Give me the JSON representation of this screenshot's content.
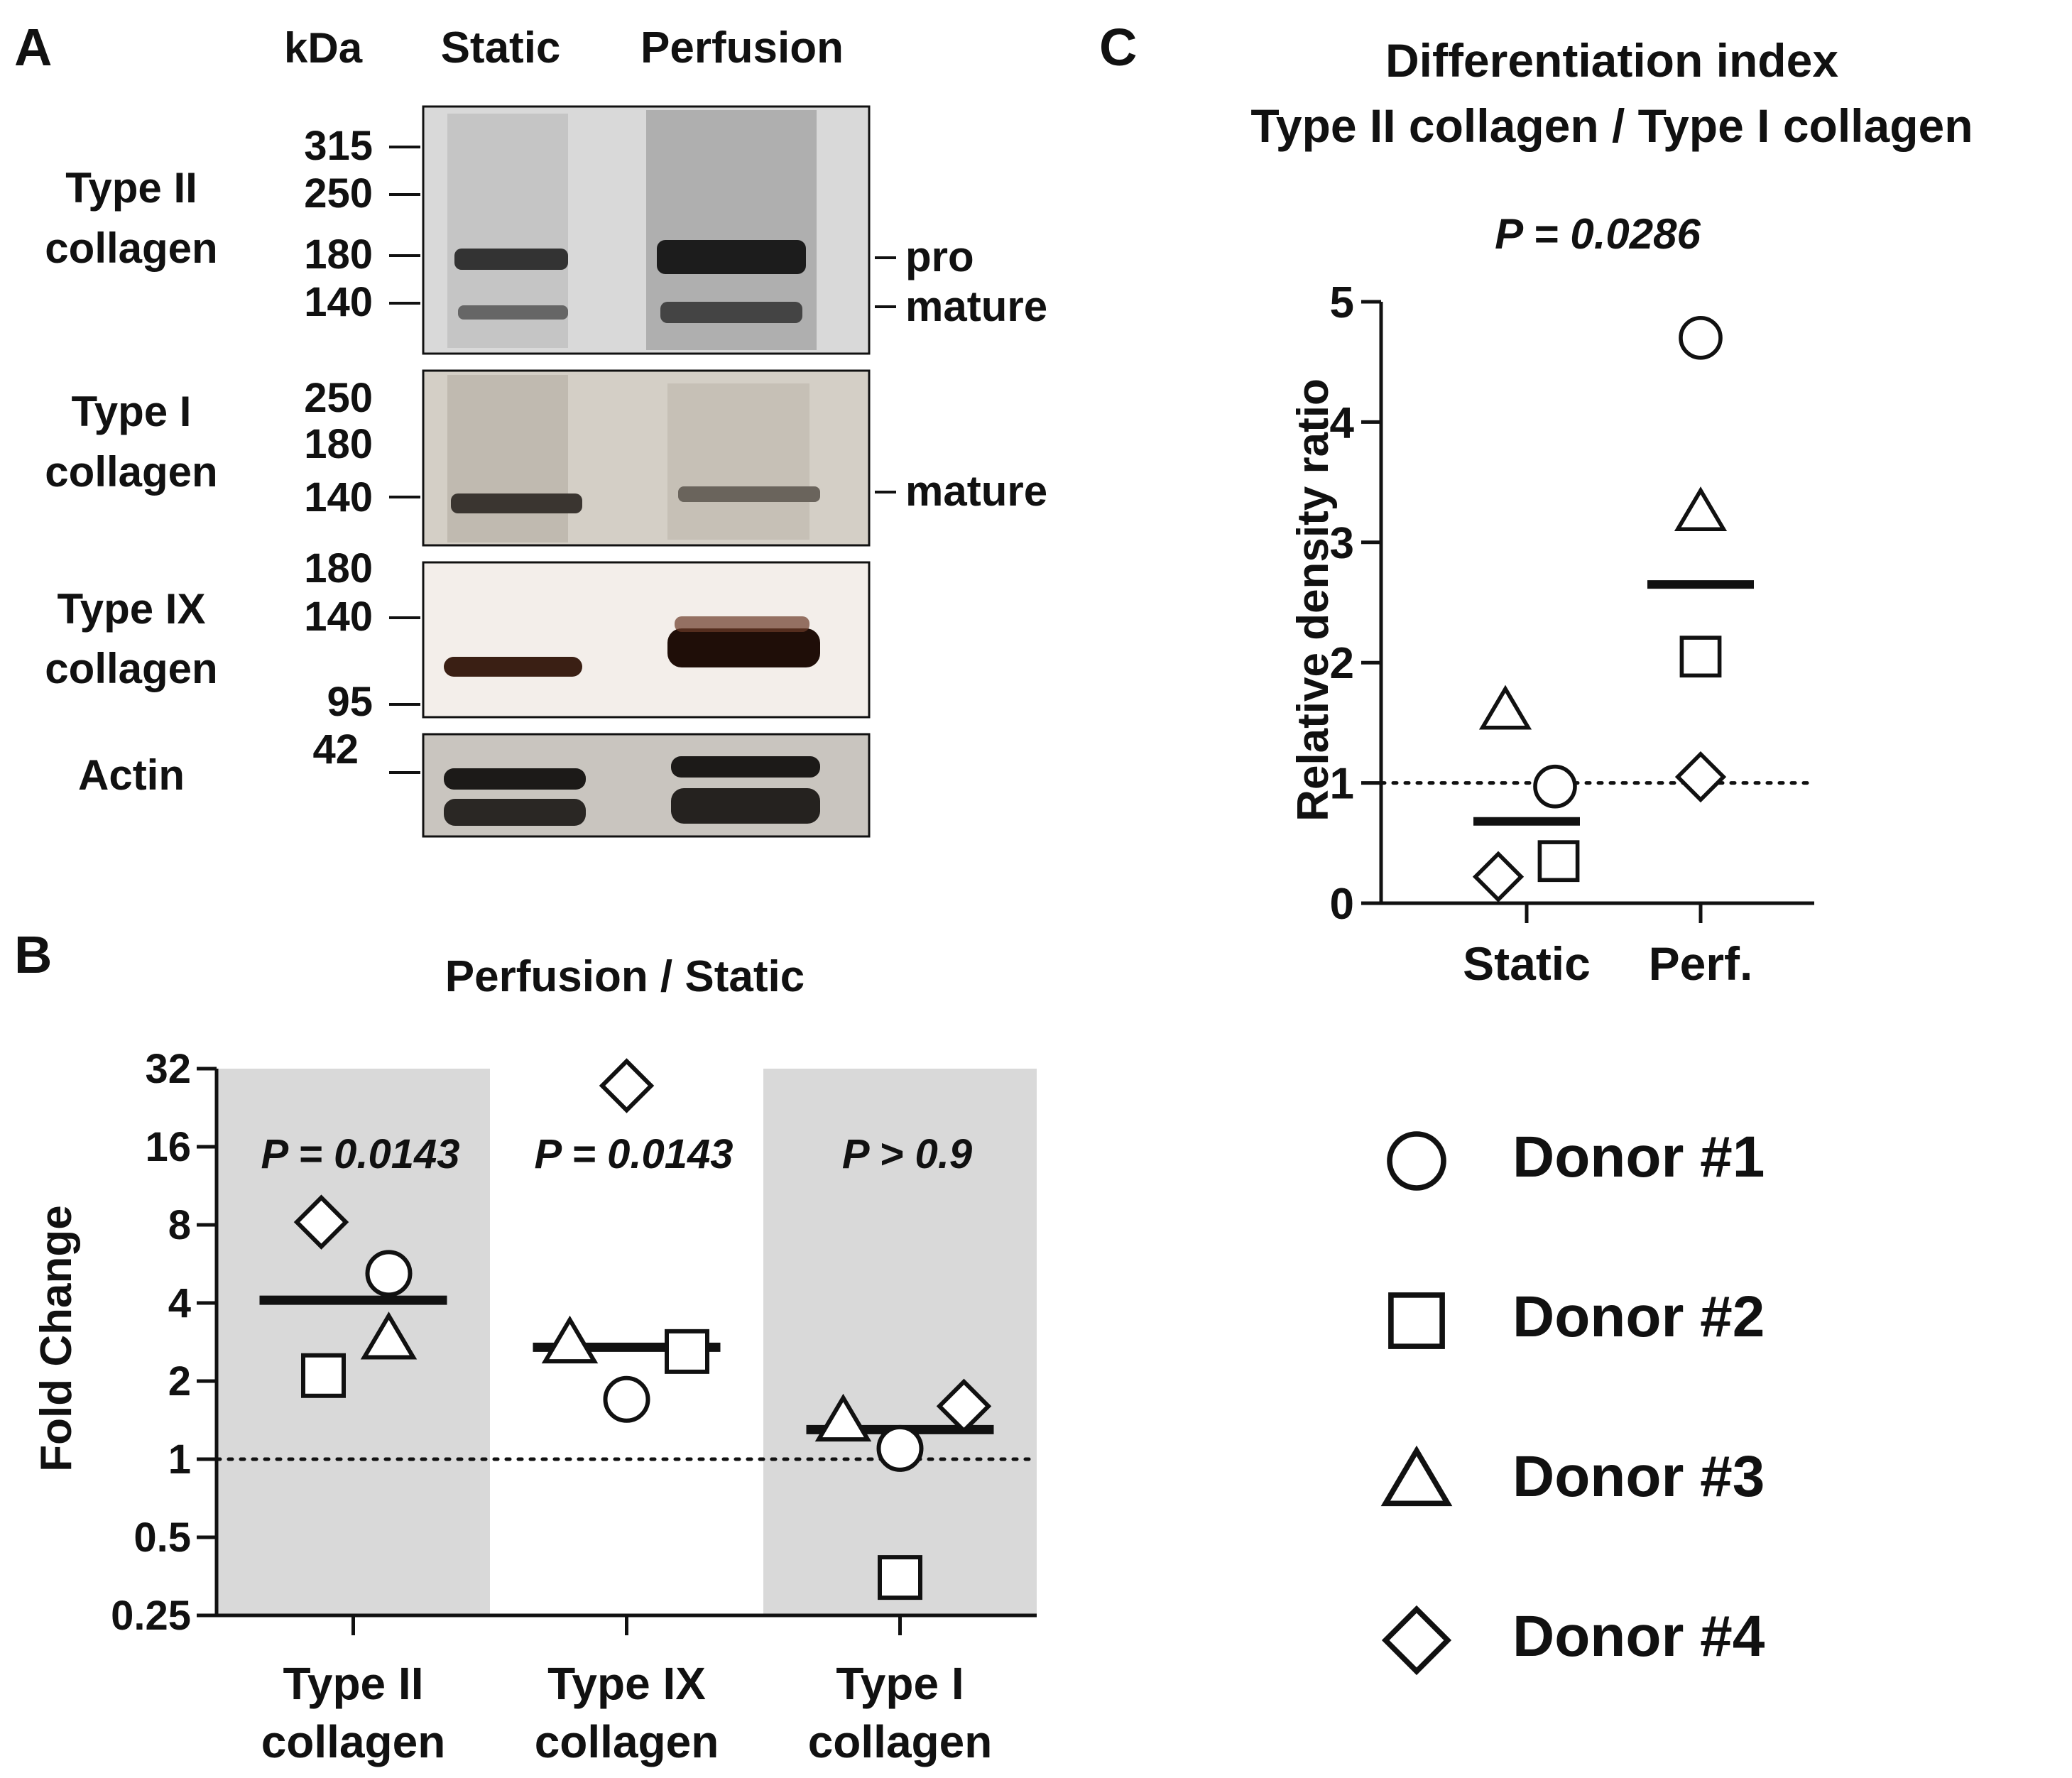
{
  "panel_a": {
    "letter": "A",
    "kda_label": "kDa",
    "lane_labels": [
      "Static",
      "Perfusion"
    ],
    "blots": [
      {
        "label_lines": [
          "Type II",
          "collagen"
        ],
        "markers": [
          "315",
          "250",
          "180",
          "140"
        ],
        "band_labels": [
          "pro",
          "mature"
        ],
        "tint": "#d9d9d9"
      },
      {
        "label_lines": [
          "Type I",
          "collagen"
        ],
        "markers": [
          "250",
          "180",
          "140"
        ],
        "band_labels": [
          "mature"
        ],
        "tint": "#d4cfc6"
      },
      {
        "label_lines": [
          "Type IX",
          "collagen"
        ],
        "markers": [
          "180",
          "140",
          "95"
        ],
        "band_labels": [],
        "tint": "#f3eeea"
      },
      {
        "label_lines": [
          "Actin"
        ],
        "markers": [
          "42"
        ],
        "band_labels": [],
        "tint": "#c9c5bf"
      }
    ]
  },
  "chart_data": [
    {
      "panel": "B",
      "type": "scatter",
      "title": "Perfusion / Static",
      "ylabel": "Fold Change",
      "yscale": "log2",
      "ylim": [
        0.25,
        32
      ],
      "yticks": [
        "0.25",
        "0.5",
        "1",
        "2",
        "4",
        "8",
        "16",
        "32"
      ],
      "reference_line": 1,
      "categories": [
        [
          "Type II",
          "collagen"
        ],
        [
          "Type IX",
          "collagen"
        ],
        [
          "Type I",
          "collagen"
        ]
      ],
      "shaded_categories": [
        0,
        2
      ],
      "p_values": [
        "P = 0.0143",
        "P = 0.0143",
        "P > 0.9"
      ],
      "means": [
        4.1,
        2.7,
        1.3
      ],
      "series": [
        {
          "name": "Donor #1",
          "marker": "circle",
          "values": [
            5.2,
            1.7,
            1.1
          ]
        },
        {
          "name": "Donor #2",
          "marker": "square",
          "values": [
            2.1,
            2.6,
            0.35
          ]
        },
        {
          "name": "Donor #3",
          "marker": "triangle",
          "values": [
            2.9,
            2.8,
            1.4
          ]
        },
        {
          "name": "Donor #4",
          "marker": "diamond",
          "values": [
            8.2,
            27.5,
            1.6
          ]
        }
      ]
    },
    {
      "panel": "C",
      "type": "scatter",
      "title_lines": [
        "Differentiation index",
        "Type II collagen / Type I collagen"
      ],
      "p_value": "P = 0.0286",
      "ylabel": "Relative density ratio",
      "ylim": [
        0,
        5
      ],
      "yticks": [
        "0",
        "1",
        "2",
        "3",
        "4",
        "5"
      ],
      "reference_line": 1,
      "categories": [
        "Static",
        "Perf."
      ],
      "means": [
        0.68,
        2.65
      ],
      "series": [
        {
          "name": "Donor #1",
          "marker": "circle",
          "values": [
            0.97,
            4.7
          ]
        },
        {
          "name": "Donor #2",
          "marker": "square",
          "values": [
            0.35,
            2.05
          ]
        },
        {
          "name": "Donor #3",
          "marker": "triangle",
          "values": [
            1.6,
            3.25
          ]
        },
        {
          "name": "Donor #4",
          "marker": "diamond",
          "values": [
            0.22,
            1.05
          ]
        }
      ]
    }
  ],
  "legend": {
    "entries": [
      {
        "label": "Donor #1",
        "marker": "circle"
      },
      {
        "label": "Donor #2",
        "marker": "square"
      },
      {
        "label": "Donor #3",
        "marker": "triangle"
      },
      {
        "label": "Donor #4",
        "marker": "diamond"
      }
    ]
  },
  "colors": {
    "shade": "#d9d9d9",
    "ink": "#111111"
  }
}
